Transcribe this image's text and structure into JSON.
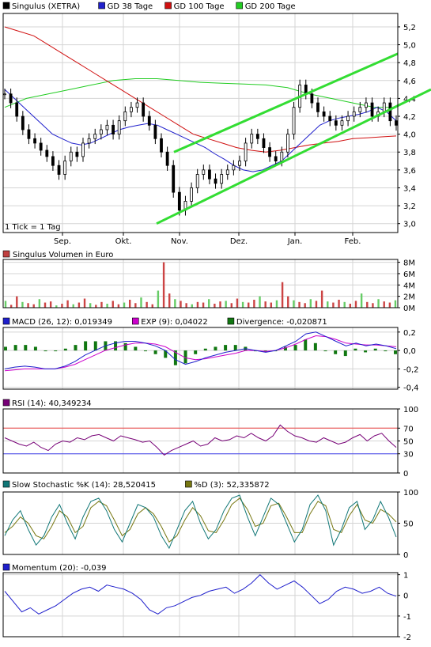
{
  "chart_data": [
    {
      "type": "line",
      "title": "",
      "legend": [
        {
          "label": "Singulus (XETRA)",
          "color": "#000000"
        },
        {
          "label": "GD 38 Tage",
          "color": "#1f1fcc"
        },
        {
          "label": "GD 100 Tage",
          "color": "#d01010"
        },
        {
          "label": "GD 200 Tage",
          "color": "#22cc22"
        }
      ],
      "y_ticks": [
        "5,2",
        "5,0",
        "4,8",
        "4,6",
        "4,4",
        "4,2",
        "4,0",
        "3,8",
        "3,6",
        "3,4",
        "3,2",
        "3,0"
      ],
      "ylim": [
        2.9,
        5.35
      ],
      "x_ticks": [
        "Sep.",
        "Okt.",
        "Nov.",
        "Dez.",
        "Jan.",
        "Feb."
      ],
      "note": "1 Tick = 1 Tag",
      "price": [
        4.45,
        4.35,
        4.2,
        4.05,
        3.95,
        3.9,
        3.82,
        3.75,
        3.65,
        3.55,
        3.7,
        3.8,
        3.75,
        3.9,
        3.95,
        4.0,
        4.05,
        4.1,
        4.0,
        4.15,
        4.25,
        4.3,
        4.35,
        4.2,
        4.1,
        3.95,
        3.8,
        3.65,
        3.35,
        3.15,
        3.25,
        3.4,
        3.55,
        3.6,
        3.5,
        3.45,
        3.55,
        3.6,
        3.65,
        3.7,
        3.9,
        4.0,
        3.95,
        3.85,
        3.75,
        3.7,
        3.8,
        4.0,
        4.3,
        4.55,
        4.45,
        4.35,
        4.25,
        4.2,
        4.15,
        4.1,
        4.15,
        4.2,
        4.25,
        4.3,
        4.35,
        4.2,
        4.25,
        4.35,
        4.15,
        4.1
      ],
      "gd38": [
        4.5,
        4.4,
        4.3,
        4.2,
        4.1,
        4.0,
        3.95,
        3.9,
        3.88,
        3.9,
        3.95,
        4.0,
        4.05,
        4.08,
        4.1,
        4.12,
        4.1,
        4.05,
        4.0,
        3.95,
        3.9,
        3.85,
        3.78,
        3.72,
        3.65,
        3.6,
        3.58,
        3.6,
        3.65,
        3.7,
        3.8,
        3.9,
        4.0,
        4.1,
        4.15,
        4.18,
        4.2,
        4.22,
        4.25,
        4.3,
        4.25,
        4.15
      ],
      "gd100": [
        5.2,
        5.15,
        5.1,
        5.0,
        4.9,
        4.8,
        4.7,
        4.6,
        4.5,
        4.4,
        4.3,
        4.2,
        4.1,
        4.0,
        3.95,
        3.9,
        3.85,
        3.82,
        3.8,
        3.82,
        3.85,
        3.88,
        3.9,
        3.92,
        3.95,
        3.96,
        3.97,
        3.98
      ],
      "gd200": [
        4.3,
        4.4,
        4.45,
        4.5,
        4.55,
        4.6,
        4.62,
        4.62,
        4.6,
        4.58,
        4.57,
        4.56,
        4.55,
        4.52,
        4.45,
        4.4,
        4.35,
        4.3,
        4.3
      ],
      "channel_lower": [
        [
          3.0,
          3.9
        ],
        [
          3.8,
          4.5
        ]
      ],
      "channel_upper": [
        [
          3.8,
          4.9
        ],
        [
          3.5,
          4.8
        ]
      ]
    },
    {
      "type": "bar",
      "title": "Singulus Volumen in Euro",
      "y_ticks": [
        "8M",
        "6M",
        "4M",
        "2M",
        "0M"
      ],
      "ylim": [
        0,
        8.5
      ],
      "values": [
        1.2,
        0.5,
        2.0,
        1.0,
        0.8,
        0.6,
        1.5,
        0.9,
        1.1,
        0.4,
        0.7,
        1.3,
        0.6,
        0.9,
        1.6,
        0.8,
        0.5,
        1.0,
        0.7,
        1.2,
        0.6,
        0.9,
        1.4,
        0.8,
        1.8,
        1.0,
        0.6,
        3.0,
        8.0,
        2.5,
        1.5,
        1.2,
        0.8,
        0.6,
        1.0,
        0.9,
        1.5,
        0.7,
        1.1,
        1.2,
        0.8,
        1.6,
        1.0,
        0.9,
        1.4,
        2.0,
        1.1,
        0.9,
        1.3,
        4.5,
        2.0,
        1.3,
        1.0,
        0.8,
        1.5,
        1.2,
        3.0,
        1.1,
        0.9,
        1.4,
        1.0,
        0.7,
        1.2,
        2.5,
        1.0,
        0.8,
        1.5,
        1.1,
        0.9,
        1.3
      ]
    },
    {
      "type": "line",
      "legend": [
        {
          "label": "MACD (26, 12): 0,019349",
          "color": "#1f1fcc"
        },
        {
          "label": "EXP (9): 0,04022",
          "color": "#cc00cc"
        },
        {
          "label": "Divergence: -0,020871",
          "color": "#117711"
        }
      ],
      "y_ticks": [
        "0,2",
        "0,0",
        "-0,2",
        "-0,4"
      ],
      "ylim": [
        -0.42,
        0.25
      ],
      "macd": [
        -0.2,
        -0.18,
        -0.17,
        -0.18,
        -0.2,
        -0.2,
        -0.17,
        -0.12,
        -0.05,
        0.0,
        0.05,
        0.08,
        0.1,
        0.1,
        0.08,
        0.05,
        0.0,
        -0.1,
        -0.15,
        -0.12,
        -0.08,
        -0.05,
        -0.02,
        0.0,
        0.02,
        0.0,
        -0.02,
        0.0,
        0.05,
        0.1,
        0.18,
        0.2,
        0.15,
        0.1,
        0.05,
        0.08,
        0.05,
        0.07,
        0.05,
        0.02
      ],
      "exp": [
        -0.22,
        -0.21,
        -0.2,
        -0.2,
        -0.2,
        -0.2,
        -0.18,
        -0.15,
        -0.1,
        -0.05,
        0.0,
        0.03,
        0.06,
        0.08,
        0.08,
        0.07,
        0.04,
        -0.02,
        -0.08,
        -0.1,
        -0.09,
        -0.07,
        -0.05,
        -0.03,
        0.0,
        0.0,
        -0.01,
        0.0,
        0.03,
        0.07,
        0.12,
        0.16,
        0.15,
        0.12,
        0.08,
        0.07,
        0.06,
        0.06,
        0.05,
        0.04
      ]
    },
    {
      "type": "line",
      "legend": [
        {
          "label": "RSI (14): 40,349234",
          "color": "#770077"
        }
      ],
      "y_ticks": [
        "100",
        "70",
        "50",
        "30",
        "0"
      ],
      "ylim": [
        0,
        100
      ],
      "values": [
        55,
        50,
        45,
        42,
        48,
        40,
        35,
        45,
        50,
        48,
        55,
        52,
        58,
        60,
        55,
        50,
        58,
        55,
        52,
        48,
        50,
        40,
        28,
        35,
        40,
        45,
        50,
        42,
        45,
        55,
        50,
        52,
        58,
        55,
        62,
        55,
        50,
        58,
        75,
        65,
        58,
        55,
        50,
        48,
        55,
        50,
        45,
        48,
        55,
        60,
        50,
        58,
        62,
        50,
        40
      ]
    },
    {
      "type": "line",
      "legend": [
        {
          "label": "Slow Stochastic %K (14): 28,520415",
          "color": "#117777"
        },
        {
          "label": "%D (3): 52,335872",
          "color": "#777711"
        }
      ],
      "y_ticks": [
        "100",
        "50",
        "0"
      ],
      "ylim": [
        0,
        100
      ],
      "k": [
        30,
        55,
        70,
        40,
        15,
        30,
        60,
        80,
        50,
        25,
        60,
        85,
        90,
        70,
        40,
        20,
        50,
        80,
        75,
        60,
        30,
        10,
        40,
        70,
        85,
        50,
        25,
        40,
        70,
        90,
        95,
        60,
        30,
        60,
        90,
        80,
        50,
        20,
        40,
        80,
        95,
        70,
        15,
        40,
        75,
        85,
        40,
        55,
        85,
        60,
        28
      ],
      "d": [
        35,
        45,
        60,
        50,
        30,
        25,
        45,
        70,
        60,
        35,
        45,
        75,
        85,
        78,
        55,
        30,
        40,
        65,
        75,
        65,
        45,
        20,
        30,
        55,
        75,
        62,
        38,
        35,
        55,
        80,
        90,
        72,
        45,
        50,
        78,
        82,
        60,
        35,
        35,
        65,
        85,
        78,
        40,
        35,
        62,
        80,
        55,
        50,
        72,
        65,
        52
      ]
    },
    {
      "type": "line",
      "legend": [
        {
          "label": "Momentum (20): -0,039",
          "color": "#1f1fcc"
        }
      ],
      "y_ticks": [
        "1",
        "0",
        "-1",
        "-2"
      ],
      "ylim": [
        -2,
        1.1
      ],
      "values": [
        0.2,
        -0.3,
        -0.8,
        -0.6,
        -0.9,
        -0.7,
        -0.5,
        -0.2,
        0.1,
        0.3,
        0.4,
        0.2,
        0.5,
        0.4,
        0.3,
        0.1,
        -0.2,
        -0.7,
        -0.9,
        -0.6,
        -0.5,
        -0.3,
        -0.1,
        0.0,
        0.2,
        0.3,
        0.4,
        0.1,
        0.3,
        0.6,
        1.0,
        0.6,
        0.3,
        0.5,
        0.7,
        0.4,
        0.0,
        -0.4,
        -0.2,
        0.2,
        0.4,
        0.3,
        0.1,
        0.2,
        0.4,
        0.1,
        -0.04
      ]
    }
  ]
}
